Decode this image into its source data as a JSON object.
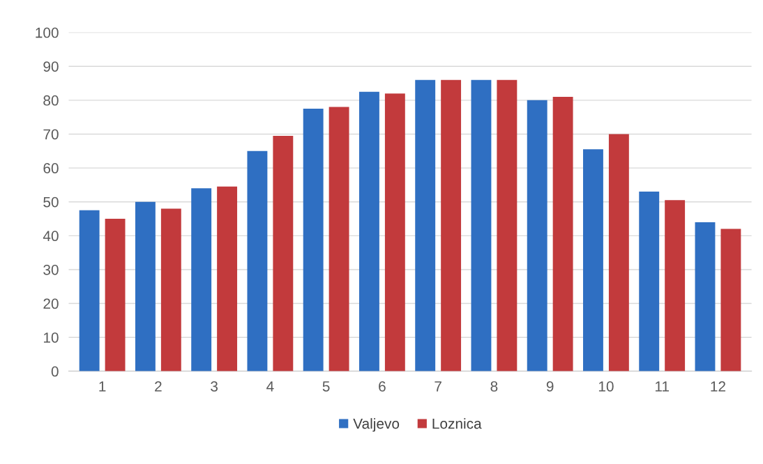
{
  "chart_data": {
    "type": "bar",
    "categories": [
      "1",
      "2",
      "3",
      "4",
      "5",
      "6",
      "7",
      "8",
      "9",
      "10",
      "11",
      "12"
    ],
    "series": [
      {
        "name": "Valjevo",
        "color": "#2f6fc2",
        "values": [
          47.5,
          50,
          54,
          65,
          77.5,
          82.5,
          86,
          86,
          80,
          65.5,
          53,
          44
        ]
      },
      {
        "name": "Loznica",
        "color": "#c23a3c",
        "values": [
          45,
          48,
          54.5,
          69.5,
          78,
          82,
          86,
          86,
          81,
          70,
          50.5,
          42
        ]
      }
    ],
    "ylim": [
      0,
      100
    ],
    "yticks": [
      0,
      10,
      20,
      30,
      40,
      50,
      60,
      70,
      80,
      90,
      100
    ],
    "grid": "y",
    "legend": "bottom"
  }
}
